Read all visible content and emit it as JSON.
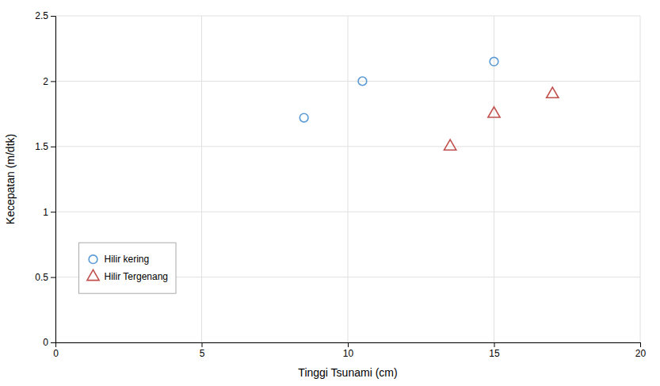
{
  "chart_data": {
    "type": "scatter",
    "xlabel": "Tinggi Tsunami (cm)",
    "ylabel": "Kecepatan (m/dtk)",
    "series": [
      {
        "name": "Hilir kering",
        "color": "#5b9bd5",
        "marker": "circle",
        "x": [
          8.5,
          10.5,
          15.0
        ],
        "values": [
          1.72,
          2.0,
          2.15
        ]
      },
      {
        "name": "Hilir Tergenang",
        "color": "#c0504d",
        "marker": "triangle",
        "x": [
          13.5,
          15.0,
          17.0
        ],
        "values": [
          1.5,
          1.75,
          1.9
        ]
      }
    ],
    "xlim": [
      0,
      20
    ],
    "ylim": [
      0,
      2.5
    ],
    "xticks": [
      0,
      5,
      10,
      15,
      20
    ],
    "yticks": [
      0,
      0.5,
      1,
      1.5,
      2,
      2.5
    ],
    "grid": true,
    "legend": "lower left"
  }
}
